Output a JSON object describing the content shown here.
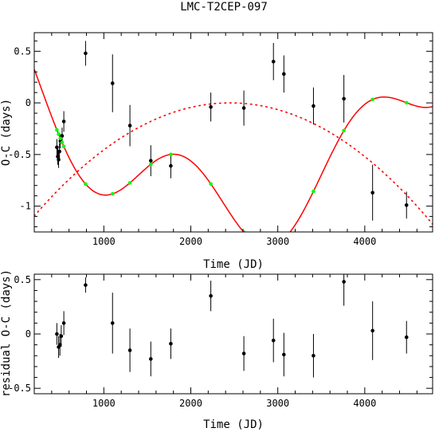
{
  "chart_data": [
    {
      "type": "scatter",
      "title": "LMC-T2CEP-097",
      "xlabel": "Time (JD)",
      "ylabel": "O-C (days)",
      "xlim": [
        200,
        4780
      ],
      "ylim": [
        -1.25,
        0.68
      ],
      "x_ticks": [
        1000,
        2000,
        3000,
        4000
      ],
      "x_tick_labels": [
        "1000",
        "2000",
        "3000",
        "4000"
      ],
      "y_ticks": [
        0.5,
        0,
        -0.5,
        -1
      ],
      "y_tick_labels": [
        "0.5",
        "0",
        "-0.5",
        "-1"
      ],
      "grid": false,
      "colors": {
        "points": "#000000",
        "model": "#ff0000",
        "model_points": "#00ff00"
      },
      "series": [
        {
          "type": "scatter_errorbar",
          "x": [
            460,
            470,
            480,
            490,
            500,
            520,
            540,
            790,
            1100,
            1300,
            1540,
            1770,
            2230,
            2610,
            2950,
            3070,
            3410,
            3760,
            4090,
            4480
          ],
          "y": [
            -0.43,
            -0.52,
            -0.55,
            -0.47,
            -0.37,
            -0.32,
            -0.18,
            0.48,
            0.19,
            -0.22,
            -0.56,
            -0.61,
            -0.04,
            -0.05,
            0.4,
            0.28,
            -0.03,
            0.04,
            -0.87,
            -0.99
          ],
          "yerr": [
            0.08,
            0.08,
            0.08,
            0.08,
            0.07,
            0.08,
            0.1,
            0.12,
            0.28,
            0.2,
            0.15,
            0.12,
            0.14,
            0.17,
            0.18,
            0.18,
            0.18,
            0.23,
            0.27,
            0.13
          ]
        },
        {
          "type": "line",
          "style": "solid",
          "expression": "(t-2450)^2/(2050^2) - 1.015 + 0.43*sin(2*pi*(t-1358)/2100)",
          "x_range": [
            200,
            4780
          ]
        },
        {
          "type": "line",
          "style": "dotted",
          "expression": "-(t-2450)^2/(2150^2)",
          "x_range": [
            200,
            4780
          ]
        },
        {
          "type": "scatter",
          "x": [
            460,
            480,
            500,
            520,
            540,
            790,
            1100,
            1300,
            1540,
            1770,
            2230,
            2610,
            2950,
            3070,
            3410,
            3760,
            4090,
            4480
          ]
        }
      ]
    },
    {
      "type": "scatter",
      "xlabel": "Time (JD)",
      "ylabel": "residual O-C (days)",
      "xlim": [
        200,
        4780
      ],
      "ylim": [
        -0.55,
        0.55
      ],
      "x_ticks": [
        1000,
        2000,
        3000,
        4000
      ],
      "x_tick_labels": [
        "1000",
        "2000",
        "3000",
        "4000"
      ],
      "y_ticks": [
        0.5,
        0,
        -0.5
      ],
      "y_tick_labels": [
        "0.5",
        "0",
        "-0.5"
      ],
      "grid": false,
      "series": [
        {
          "type": "scatter_errorbar",
          "x": [
            460,
            480,
            495,
            510,
            540,
            790,
            1100,
            1300,
            1540,
            1770,
            2230,
            2610,
            2950,
            3070,
            3410,
            3760,
            4090,
            4480
          ],
          "y": [
            0.0,
            -0.12,
            -0.1,
            -0.02,
            0.1,
            0.45,
            0.1,
            -0.15,
            -0.23,
            -0.09,
            0.35,
            -0.18,
            -0.06,
            -0.19,
            -0.2,
            0.48,
            0.03,
            -0.03
          ],
          "yerr": [
            0.1,
            0.1,
            0.1,
            0.1,
            0.11,
            0.07,
            0.28,
            0.2,
            0.16,
            0.14,
            0.14,
            0.16,
            0.2,
            0.2,
            0.2,
            0.22,
            0.27,
            0.15
          ]
        }
      ]
    }
  ]
}
